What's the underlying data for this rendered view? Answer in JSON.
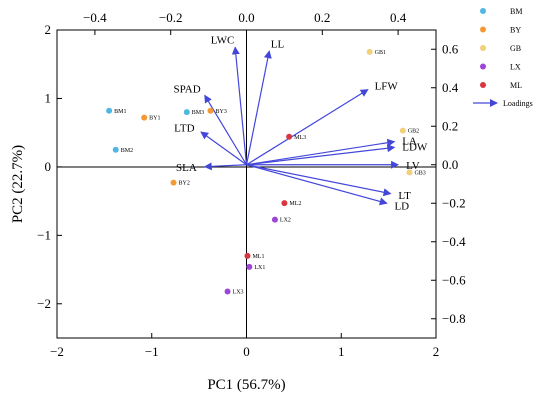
{
  "chart_data": {
    "type": "scatter",
    "subtype": "pca-biplot",
    "xlabel": "PC1 (56.7%)",
    "ylabel": "PC2 (22.7%)",
    "x_bottom": {
      "range": [
        -2,
        2
      ],
      "ticks": [
        "−2",
        "−1",
        "0",
        "1",
        "2"
      ]
    },
    "y_left": {
      "range": [
        -2.5,
        2.0
      ],
      "ticks": [
        "2",
        "1",
        "0",
        "−1",
        "−2"
      ]
    },
    "x_top": {
      "range": [
        -0.5,
        0.5
      ],
      "ticks": [
        "−0.4",
        "−0.2",
        "0.0",
        "0.2",
        "0.4"
      ]
    },
    "y_right": {
      "range": [
        -0.9,
        0.7
      ],
      "ticks": [
        "0.6",
        "0.4",
        "0.2",
        "0.0",
        "−0.2",
        "−0.4",
        "−0.6",
        "−0.8"
      ]
    },
    "grid": false,
    "legend_placement": "right",
    "colors": {
      "BM": "#4FB7E1",
      "BY": "#F39A34",
      "GB": "#F2CF7A",
      "LX": "#9C45D6",
      "ML": "#D9363F",
      "Loadings": "#4347D9"
    },
    "groups": [
      {
        "name": "BM",
        "points": [
          {
            "label": "BM1",
            "x": -1.45,
            "y": 0.82
          },
          {
            "label": "BM2",
            "x": -1.38,
            "y": 0.25
          },
          {
            "label": "BM3",
            "x": -0.63,
            "y": 0.8
          }
        ]
      },
      {
        "name": "BY",
        "points": [
          {
            "label": "BY1",
            "x": -1.08,
            "y": 0.72
          },
          {
            "label": "BY2",
            "x": -0.77,
            "y": -0.23
          },
          {
            "label": "BY3",
            "x": -0.38,
            "y": 0.82
          }
        ]
      },
      {
        "name": "GB",
        "points": [
          {
            "label": "GB1",
            "x": 1.3,
            "y": 1.68
          },
          {
            "label": "GB2",
            "x": 1.65,
            "y": 0.53
          },
          {
            "label": "GB3",
            "x": 1.72,
            "y": -0.08
          }
        ]
      },
      {
        "name": "LX",
        "points": [
          {
            "label": "LX1",
            "x": 0.03,
            "y": -1.46
          },
          {
            "label": "LX2",
            "x": 0.3,
            "y": -0.77
          },
          {
            "label": "LX3",
            "x": -0.2,
            "y": -1.82
          }
        ]
      },
      {
        "name": "ML",
        "points": [
          {
            "label": "ML1",
            "x": 0.01,
            "y": -1.3
          },
          {
            "label": "ML2",
            "x": 0.4,
            "y": -0.53
          },
          {
            "label": "ML3",
            "x": 0.45,
            "y": 0.44
          }
        ]
      }
    ],
    "loadings": [
      {
        "label": "LWC",
        "x": -0.03,
        "y": 0.61
      },
      {
        "label": "LL",
        "x": 0.06,
        "y": 0.59
      },
      {
        "label": "SPAD",
        "x": -0.11,
        "y": 0.36
      },
      {
        "label": "LFW",
        "x": 0.32,
        "y": 0.39
      },
      {
        "label": "LTD",
        "x": -0.12,
        "y": 0.17
      },
      {
        "label": "LA",
        "x": 0.39,
        "y": 0.12
      },
      {
        "label": "LDW",
        "x": 0.39,
        "y": 0.09
      },
      {
        "label": "LV",
        "x": 0.4,
        "y": 0.0
      },
      {
        "label": "SLA",
        "x": -0.11,
        "y": -0.01
      },
      {
        "label": "LT",
        "x": 0.38,
        "y": -0.15
      },
      {
        "label": "LD",
        "x": 0.37,
        "y": -0.2
      }
    ],
    "legend": [
      "BM",
      "BY",
      "GB",
      "LX",
      "ML",
      "Loadings"
    ]
  }
}
